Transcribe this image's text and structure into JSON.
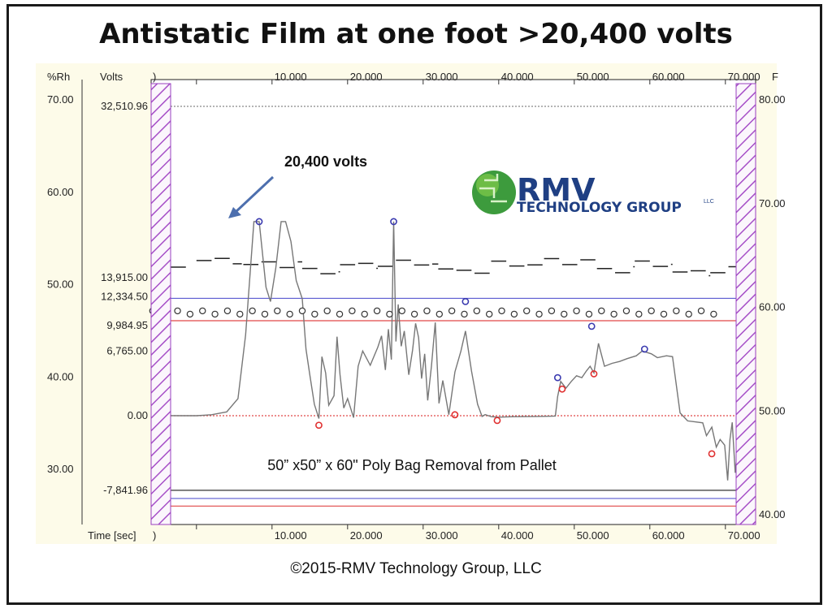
{
  "title": "Antistatic Film at one foot >20,400 volts",
  "footer": "©2015-RMV Technology Group, LLC",
  "logo": {
    "name": "RMV",
    "subtitle": "TECHNOLOGY GROUP",
    "suffix": "LLC"
  },
  "colors": {
    "frame": "#1a1a1a",
    "plot_bg": "#fdfbe9",
    "hatch": "#a64fc7",
    "volt_line": "#777777",
    "peak": "#3b3bb0",
    "trough": "#e03030",
    "arrow": "#4d6fae",
    "blue_limit": "#5a5ad0",
    "red_limit": "#e04848"
  },
  "chart_data": {
    "type": "line",
    "xlabel": "Time [sec]",
    "x_ticks": [
      "10.000",
      "20.000",
      "30.000",
      "40.000",
      "50.000",
      "60.000",
      "70.000"
    ],
    "left_axis_rh": {
      "label": "%Rh",
      "ticks": [
        "70.00",
        "60.00",
        "50.00",
        "40.00",
        "30.00"
      ]
    },
    "left_axis_volts": {
      "label": "Volts",
      "ticks": [
        "32,510.96",
        "13,915.00",
        "12,334.50",
        "9,984.95",
        "6,765.00",
        "0.00",
        "-7,841.96"
      ]
    },
    "right_axis_f": {
      "label": "F",
      "ticks": [
        "80.00",
        "70.00",
        "60.00",
        "50.00",
        "40.00"
      ]
    },
    "annotations": [
      "20,400 volts",
      "50” x50” x 60\" Poly Bag Removal from Pallet"
    ],
    "xlim": [
      -6,
      74
    ],
    "volts_ylim": [
      -9900,
      32510.96
    ],
    "series": [
      {
        "name": "Volts",
        "x": [
          -5.8,
          -2,
          0,
          2,
          4,
          5.5,
          6.5,
          7.6,
          8.3,
          9.2,
          9.8,
          10.5,
          11.2,
          11.8,
          12.5,
          13.2,
          14,
          14.5,
          15,
          15.6,
          16.2,
          16.6,
          17.1,
          17.5,
          18.2,
          18.6,
          19,
          19.5,
          20,
          20.8,
          21.4,
          22,
          23,
          24,
          24.5,
          25,
          25.4,
          25.8,
          26.1,
          26.4,
          26.7,
          27.1,
          27.5,
          28.1,
          28.6,
          29,
          29.4,
          29.8,
          30.2,
          30.6,
          31.1,
          31.6,
          32.1,
          32.6,
          33.4,
          34.2,
          35,
          35.6,
          36.4,
          37.2,
          37.8,
          38.2,
          39,
          40,
          42,
          45,
          46.6,
          47.5,
          47.8,
          48.2,
          48.9,
          49.6,
          50.3,
          51,
          51.6,
          52.1,
          52.6,
          53.2,
          54,
          55,
          56,
          57,
          58.2,
          59,
          60.2,
          61,
          62.2,
          63,
          64,
          65,
          66,
          67,
          67.5,
          68.2,
          68.8,
          69.3,
          69.9,
          70.3,
          70.6,
          70.9,
          71.3,
          72,
          73
        ],
        "y": [
          20,
          0,
          0,
          100,
          400,
          1800,
          8500,
          20400,
          20400,
          13500,
          12000,
          15500,
          20400,
          20400,
          18300,
          14200,
          12300,
          7000,
          4300,
          1200,
          -300,
          6200,
          4500,
          1100,
          2100,
          8300,
          4300,
          800,
          1800,
          -200,
          5200,
          6800,
          5300,
          7200,
          8400,
          4800,
          9100,
          5900,
          20400,
          7800,
          11700,
          7300,
          8900,
          4300,
          6900,
          9700,
          8200,
          3900,
          6500,
          1600,
          5200,
          9800,
          1300,
          3700,
          100,
          4600,
          6800,
          8900,
          4700,
          1200,
          -80,
          120,
          -100,
          -150,
          -100,
          -80,
          -60,
          -40,
          2000,
          3600,
          2900,
          3600,
          4200,
          4000,
          4700,
          5200,
          4500,
          7600,
          5200,
          5500,
          5700,
          6000,
          6300,
          6800,
          6500,
          6100,
          6300,
          6200,
          300,
          -550,
          -650,
          -750,
          -2100,
          -1200,
          -3300,
          -2500,
          -3100,
          -6800,
          -2500,
          -700,
          -6000,
          -200,
          -300
        ]
      },
      {
        "name": "Peak",
        "x": [
          8.3,
          26.1,
          35.6,
          47.8,
          52.3,
          59.3
        ],
        "y": [
          20400,
          20400,
          12000,
          4000,
          9400,
          7000
        ]
      },
      {
        "name": "Trough",
        "x": [
          16.2,
          34.2,
          39.8,
          48.4,
          52.6,
          68.2
        ],
        "y": [
          -1000,
          100,
          -500,
          2800,
          4400,
          -4000
        ]
      },
      {
        "name": "Temperature",
        "y_fixed": 59.5,
        "x_start": -5.8,
        "x_step": 1.65,
        "count": 46
      }
    ],
    "horizontal_limits": [
      {
        "volts": 32510.96,
        "color": "gray",
        "style": "dotted"
      },
      {
        "volts": 12334.5,
        "color": "blue"
      },
      {
        "volts": 9984.95,
        "color": "red"
      },
      {
        "volts": 0,
        "color": "red",
        "style": "dotted"
      },
      {
        "volts": -7841.96,
        "color": "black"
      },
      {
        "volts": -8700,
        "color": "blue"
      },
      {
        "volts": -9500,
        "color": "red"
      }
    ]
  }
}
